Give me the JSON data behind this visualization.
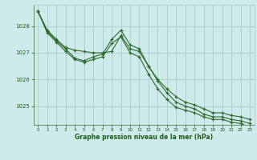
{
  "bg_color": "#ceeaea",
  "grid_color": "#aacccc",
  "line_color": "#2d6b2d",
  "xlabel": "Graphe pression niveau de la mer (hPa)",
  "xlabel_color": "#1a5c1a",
  "tick_color": "#1a5c1a",
  "ylim": [
    1024.3,
    1028.8
  ],
  "xlim": [
    -0.5,
    23.5
  ],
  "yticks": [
    1025,
    1026,
    1027,
    1028
  ],
  "xticks": [
    0,
    1,
    2,
    3,
    4,
    5,
    6,
    7,
    8,
    9,
    10,
    11,
    12,
    13,
    14,
    15,
    16,
    17,
    18,
    19,
    20,
    21,
    22,
    23
  ],
  "series1": {
    "x": [
      0,
      1,
      2,
      3,
      4,
      5,
      6,
      7,
      8,
      9,
      10,
      11,
      12,
      13,
      14,
      15,
      16,
      17,
      18,
      19,
      20,
      21,
      22,
      23
    ],
    "y": [
      1028.55,
      1027.85,
      1027.5,
      1027.2,
      1027.1,
      1027.05,
      1027.0,
      1027.0,
      1027.05,
      1027.65,
      1027.15,
      1027.05,
      1026.5,
      1026.0,
      1025.65,
      1025.35,
      1025.15,
      1025.05,
      1024.9,
      1024.75,
      1024.75,
      1024.65,
      1024.6,
      1024.5
    ]
  },
  "series2": {
    "x": [
      0,
      1,
      2,
      3,
      4,
      5,
      6,
      7,
      8,
      9,
      10,
      11,
      12,
      13,
      14,
      15,
      16,
      17,
      18,
      19,
      20,
      21,
      22,
      23
    ],
    "y": [
      1028.55,
      1027.8,
      1027.45,
      1027.15,
      1026.8,
      1026.7,
      1026.85,
      1026.95,
      1027.5,
      1027.85,
      1027.3,
      1027.15,
      1026.5,
      1025.95,
      1025.5,
      1025.15,
      1025.0,
      1024.9,
      1024.7,
      1024.6,
      1024.6,
      1024.5,
      1024.45,
      1024.35
    ]
  },
  "series3": {
    "x": [
      0,
      1,
      2,
      3,
      4,
      5,
      6,
      7,
      8,
      9,
      10,
      11,
      12,
      13,
      14,
      15,
      16,
      17,
      18,
      19,
      20,
      21,
      22,
      23
    ],
    "y": [
      1028.55,
      1027.75,
      1027.4,
      1027.05,
      1026.75,
      1026.65,
      1026.75,
      1026.85,
      1027.35,
      1027.6,
      1027.0,
      1026.85,
      1026.2,
      1025.65,
      1025.25,
      1024.95,
      1024.85,
      1024.75,
      1024.6,
      1024.5,
      1024.5,
      1024.4,
      1024.35,
      1024.2
    ]
  }
}
